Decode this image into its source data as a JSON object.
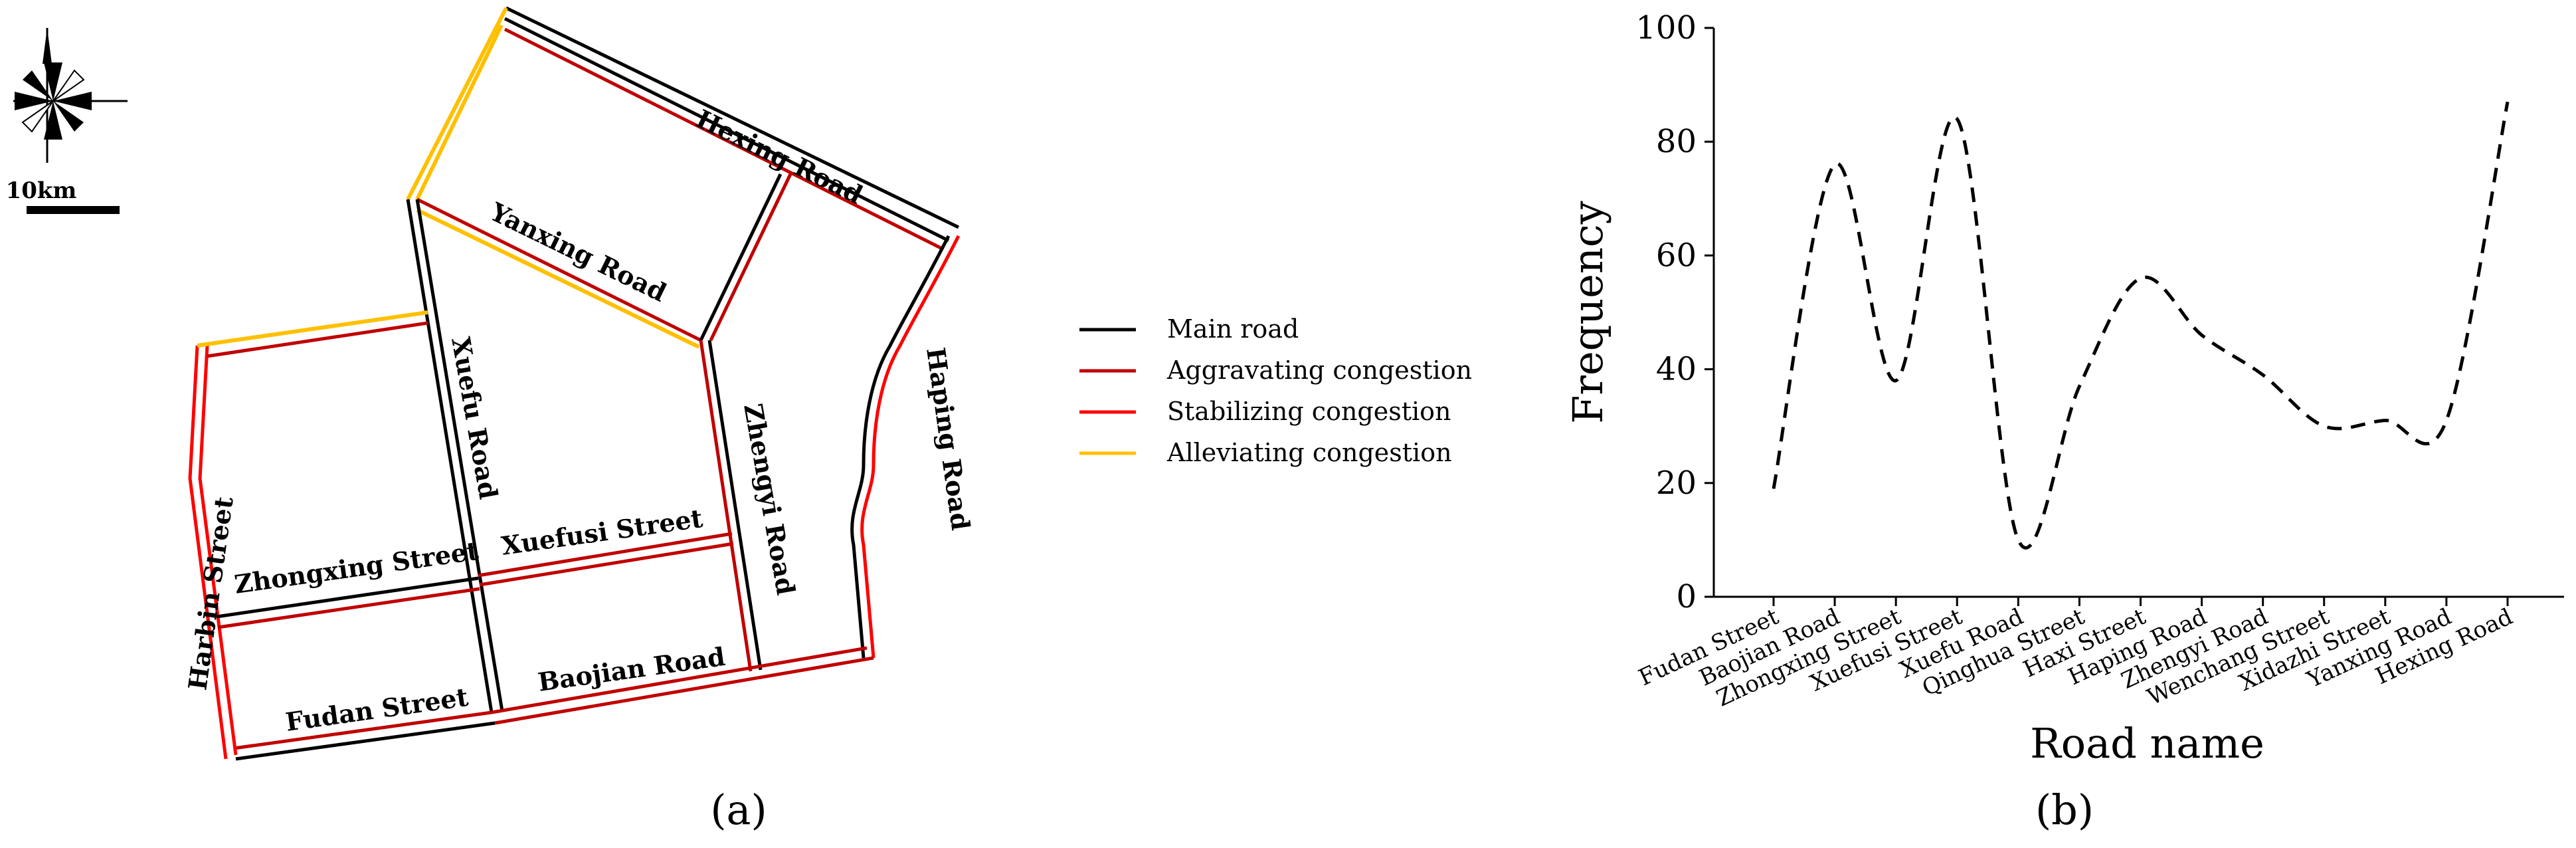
{
  "map": {
    "scale_label": "10km",
    "panel_label": "(a)",
    "legend": [
      {
        "label": "Main road",
        "color": "#000000"
      },
      {
        "label": "Aggravating congestion",
        "color": "#c00000"
      },
      {
        "label": "Stabilizing congestion",
        "color": "#ff0000"
      },
      {
        "label": "Alleviating congestion",
        "color": "#ffc000"
      }
    ],
    "roads": {
      "hexing": "Hexing Road",
      "yanxing": "Yanxing Road",
      "xuefu": "Xuefu Road",
      "zhengyi": "Zhengyi Road",
      "haping": "Haping Road",
      "xuefusi": "Xuefusi Street",
      "zhongxing": "Zhongxing Street",
      "harbin": "Harbin Street",
      "fudan": "Fudan Street",
      "baojian": "Baojian Road"
    }
  },
  "chart_data": {
    "type": "line",
    "panel_label": "(b)",
    "xlabel": "Road name",
    "ylabel": "Frequency",
    "ylim": [
      0,
      100
    ],
    "yticks": [
      0,
      20,
      40,
      60,
      80,
      100
    ],
    "line_style": "dashed",
    "categories": [
      "Fudan Street",
      "Baojian Road",
      "Zhongxing Street",
      "Xuefusi Street",
      "Xuefu Road",
      "Qinghua Street",
      "Haxi Street",
      "Haping Road",
      "Zhengyi Road",
      "Wenchang Street",
      "Xidazhi Street",
      "Yanxing Road",
      "Hexing Road"
    ],
    "values": [
      19,
      76,
      38,
      84,
      10,
      37,
      56,
      46,
      39,
      30,
      31,
      31,
      87
    ]
  }
}
